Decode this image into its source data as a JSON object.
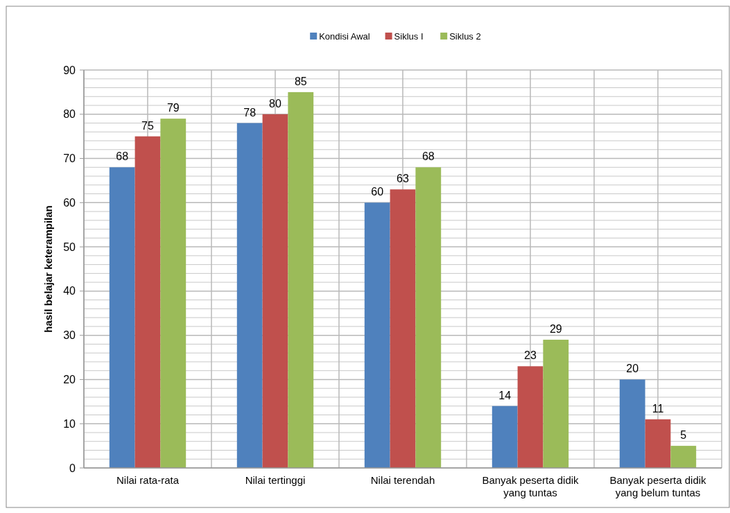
{
  "chart_data": {
    "type": "bar",
    "ylabel": "hasil belajar keterampilan",
    "categories": [
      "Nilai rata-rata",
      "Nilai tertinggi",
      "Nilai terendah",
      "Banyak peserta didik yang tuntas",
      "Banyak peserta didik yang belum tuntas"
    ],
    "series": [
      {
        "name": "Kondisi Awal",
        "color": "#4f81bd",
        "values": [
          68,
          78,
          60,
          14,
          20
        ]
      },
      {
        "name": "Siklus I",
        "color": "#c0504d",
        "values": [
          75,
          80,
          63,
          23,
          11
        ]
      },
      {
        "name": "Siklus 2",
        "color": "#9bbb59",
        "values": [
          79,
          85,
          68,
          29,
          5
        ]
      }
    ],
    "ylim": [
      0,
      90
    ],
    "yticks": [
      0,
      10,
      20,
      30,
      40,
      50,
      60,
      70,
      80,
      90
    ],
    "grid": true,
    "legend": "top",
    "data_labels": true
  }
}
